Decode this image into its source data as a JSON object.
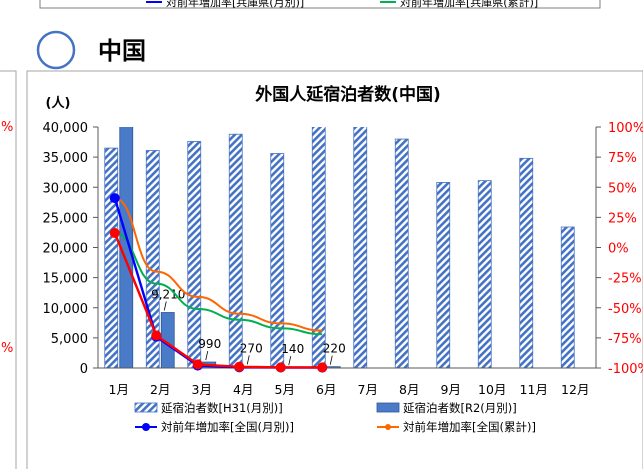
{
  "section": {
    "heading": "中国"
  },
  "top_strip_legend": {
    "item_left": "対前年増加率[兵庫県(月別)]",
    "item_right": "対前年増加率[兵庫県(累計)]"
  },
  "left_fragment": {
    "axis_tick_top": "%",
    "axis_tick_bottom": "%"
  },
  "colors": {
    "bar_h31": "#4472c4",
    "bar_r2": "#4a7bc8",
    "line_national_monthly": "#0000ff",
    "line_national_cumulative": "#ff6600",
    "line_hyogo_monthly": "#ff0000",
    "line_hyogo_cumulative": "#00b050",
    "right_axis_text": "#ff0000",
    "title_circle": "#4472c4"
  },
  "chart_data": {
    "type": "bar",
    "title": "外国人延宿泊者数(中国)",
    "y_unit_label": "(人)",
    "categories": [
      "1月",
      "2月",
      "3月",
      "4月",
      "5月",
      "6月",
      "7月",
      "8月",
      "9月",
      "10月",
      "11月",
      "12月"
    ],
    "y_left": {
      "min": 0,
      "max": 40000,
      "step": 5000,
      "tick_labels": [
        "0",
        "5,000",
        "10,000",
        "15,000",
        "20,000",
        "25,000",
        "30,000",
        "35,000",
        "40,000"
      ]
    },
    "y_right": {
      "min": -100,
      "max": 100,
      "step": 25,
      "tick_labels": [
        "-100%",
        "-75%",
        "-50%",
        "-25%",
        "0%",
        "25%",
        "50%",
        "75%",
        "100%"
      ]
    },
    "bar_series": [
      {
        "name": "延宿泊者数[H31(月別)]",
        "pattern": "hatched",
        "values": [
          36500,
          36100,
          37600,
          38800,
          35600,
          40300,
          40600,
          38000,
          30800,
          31100,
          34800,
          23400
        ]
      },
      {
        "name": "延宿泊者数[R2(月別)]",
        "pattern": "solid",
        "values": [
          42000,
          9210,
          990,
          270,
          140,
          220,
          null,
          null,
          null,
          null,
          null,
          null
        ]
      }
    ],
    "data_labels": [
      {
        "category": "2月",
        "text": "9,210"
      },
      {
        "category": "3月",
        "text": "990"
      },
      {
        "category": "4月",
        "text": "270"
      },
      {
        "category": "5月",
        "text": "140"
      },
      {
        "category": "6月",
        "text": "220"
      }
    ],
    "line_series": [
      {
        "name": "対前年増加率[全国(月別)]",
        "axis": "right",
        "marker": true,
        "values": [
          41,
          -74,
          -98,
          -99.5,
          -99.6,
          -99.7
        ]
      },
      {
        "name": "対前年増加率[全国(累計)]",
        "axis": "right",
        "marker": false,
        "values": [
          41,
          -20,
          -41,
          -55,
          -63,
          -69
        ]
      },
      {
        "name": "対前年増加率[兵庫県(月別)]",
        "axis": "right",
        "marker": true,
        "values": [
          12,
          -73,
          -97,
          -99,
          -99.5,
          -99.5
        ]
      },
      {
        "name": "対前年増加率[兵庫県(累計)]",
        "axis": "right",
        "marker": false,
        "values": [
          12,
          -30,
          -51,
          -60,
          -67,
          -72
        ]
      }
    ],
    "legend_position": "bottom",
    "grid": false
  }
}
